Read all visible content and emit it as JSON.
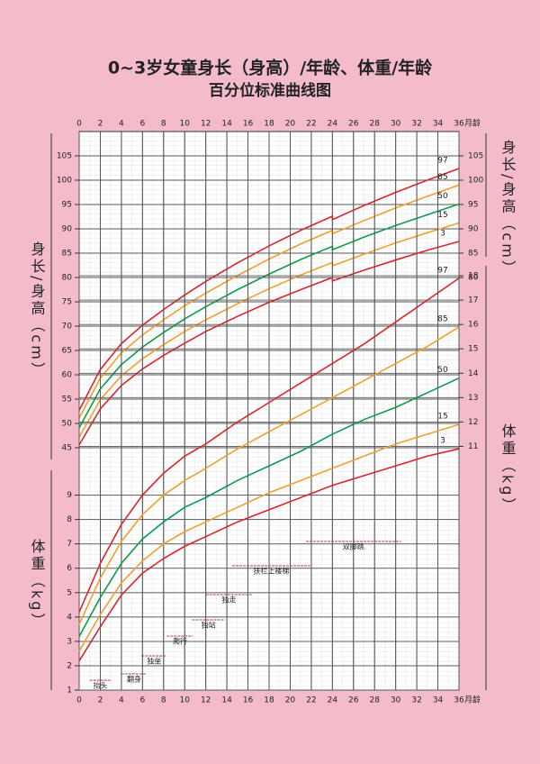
{
  "chart_data": [
    {
      "type": "line",
      "title": "0~3岁女童身长（身高）/年龄、体重/年龄",
      "subtitle": "百分位标准曲线图",
      "xlabel": "月龄",
      "ylabel": "身长/身高（cm）",
      "xlim": [
        0,
        36
      ],
      "xticks": [
        0,
        2,
        4,
        6,
        8,
        10,
        12,
        14,
        16,
        18,
        20,
        22,
        24,
        26,
        28,
        30,
        32,
        34,
        36
      ],
      "ylim": [
        45,
        110
      ],
      "yticks": [
        45,
        50,
        55,
        60,
        65,
        70,
        75,
        80,
        85,
        90,
        95,
        100,
        105
      ],
      "y2lim": [
        45,
        110
      ],
      "y2ticks": [
        80,
        85,
        90,
        95,
        100,
        105
      ],
      "grid": true,
      "x": [
        0,
        2,
        4,
        6,
        8,
        10,
        12,
        15,
        18,
        21,
        24,
        24,
        27,
        30,
        33,
        36
      ],
      "series": [
        {
          "name": "97",
          "color": "#d8262d",
          "values": [
            52.7,
            61.1,
            66.4,
            70.2,
            73.4,
            76.4,
            79.2,
            83.0,
            86.5,
            89.7,
            92.6,
            91.9,
            94.8,
            97.5,
            100.0,
            102.4
          ]
        },
        {
          "name": "85",
          "color": "#f0a02c",
          "values": [
            51.1,
            59.3,
            64.5,
            68.2,
            71.3,
            74.2,
            76.8,
            80.4,
            83.8,
            86.9,
            89.7,
            89.0,
            91.7,
            94.3,
            96.7,
            99.0
          ]
        },
        {
          "name": "50",
          "color": "#0c9c4c",
          "values": [
            49.1,
            57.1,
            62.1,
            65.7,
            68.7,
            71.5,
            74.0,
            77.5,
            80.7,
            83.7,
            86.4,
            85.7,
            88.3,
            90.7,
            92.9,
            95.1
          ]
        },
        {
          "name": "15",
          "color": "#f0a02c",
          "values": [
            47.2,
            54.9,
            59.8,
            63.3,
            66.2,
            68.9,
            71.3,
            74.6,
            77.7,
            80.5,
            83.1,
            82.4,
            84.8,
            87.1,
            89.2,
            91.2
          ]
        },
        {
          "name": "3",
          "color": "#d8262d",
          "values": [
            45.6,
            53.0,
            57.8,
            61.2,
            64.0,
            66.5,
            68.9,
            72.0,
            74.9,
            77.5,
            80.0,
            79.3,
            81.5,
            83.6,
            85.6,
            87.4
          ]
        }
      ]
    },
    {
      "type": "line",
      "xlabel": "月龄",
      "ylabel": "体重（kg）",
      "xlim": [
        0,
        36
      ],
      "xticks": [
        0,
        2,
        4,
        6,
        8,
        10,
        12,
        14,
        16,
        18,
        20,
        22,
        24,
        26,
        28,
        30,
        32,
        34,
        36
      ],
      "ylim": [
        1,
        19
      ],
      "yticks": [
        1,
        2,
        3,
        4,
        5,
        6,
        7,
        8,
        9
      ],
      "y2lim": [
        1,
        19
      ],
      "y2ticks": [
        11,
        12,
        13,
        14,
        15,
        16,
        17,
        18
      ],
      "grid": true,
      "x": [
        0,
        2,
        4,
        6,
        8,
        10,
        12,
        15,
        18,
        21,
        24,
        27,
        30,
        33,
        36
      ],
      "series": [
        {
          "name": "97",
          "color": "#d8262d",
          "values": [
            4.2,
            6.2,
            7.8,
            9.0,
            9.9,
            10.6,
            11.1,
            12.0,
            12.8,
            13.6,
            14.4,
            15.2,
            16.1,
            17.0,
            17.9
          ]
        },
        {
          "name": "85",
          "color": "#f0a02c",
          "values": [
            3.7,
            5.6,
            7.1,
            8.2,
            9.0,
            9.6,
            10.1,
            10.9,
            11.6,
            12.3,
            13.0,
            13.7,
            14.4,
            15.1,
            15.9
          ]
        },
        {
          "name": "50",
          "color": "#0c9c4c",
          "values": [
            3.2,
            4.8,
            6.2,
            7.2,
            7.9,
            8.5,
            8.9,
            9.6,
            10.2,
            10.8,
            11.5,
            12.1,
            12.6,
            13.2,
            13.8
          ]
        },
        {
          "name": "15",
          "color": "#f0a02c",
          "values": [
            2.6,
            4.1,
            5.4,
            6.3,
            7.0,
            7.5,
            7.9,
            8.5,
            9.1,
            9.6,
            10.1,
            10.6,
            11.1,
            11.5,
            11.9
          ]
        },
        {
          "name": "3",
          "color": "#d8262d",
          "values": [
            2.2,
            3.6,
            4.9,
            5.8,
            6.4,
            6.9,
            7.3,
            7.9,
            8.4,
            8.9,
            9.4,
            9.8,
            10.2,
            10.6,
            10.9
          ]
        }
      ],
      "milestones": [
        {
          "label": "抬头",
          "range": [
            1,
            3
          ]
        },
        {
          "label": "翻身",
          "range": [
            4,
            6.4
          ]
        },
        {
          "label": "独坐",
          "range": [
            5.9,
            8.3
          ]
        },
        {
          "label": "爬行",
          "range": [
            8.3,
            10.8
          ]
        },
        {
          "label": "独站",
          "range": [
            10.7,
            13.8
          ]
        },
        {
          "label": "独走",
          "range": [
            12,
            16.4
          ]
        },
        {
          "label": "扶栏上楼梯",
          "range": [
            14.5,
            21.9
          ]
        },
        {
          "label": "双脚跳",
          "range": [
            21.5,
            30.5
          ]
        }
      ]
    }
  ]
}
